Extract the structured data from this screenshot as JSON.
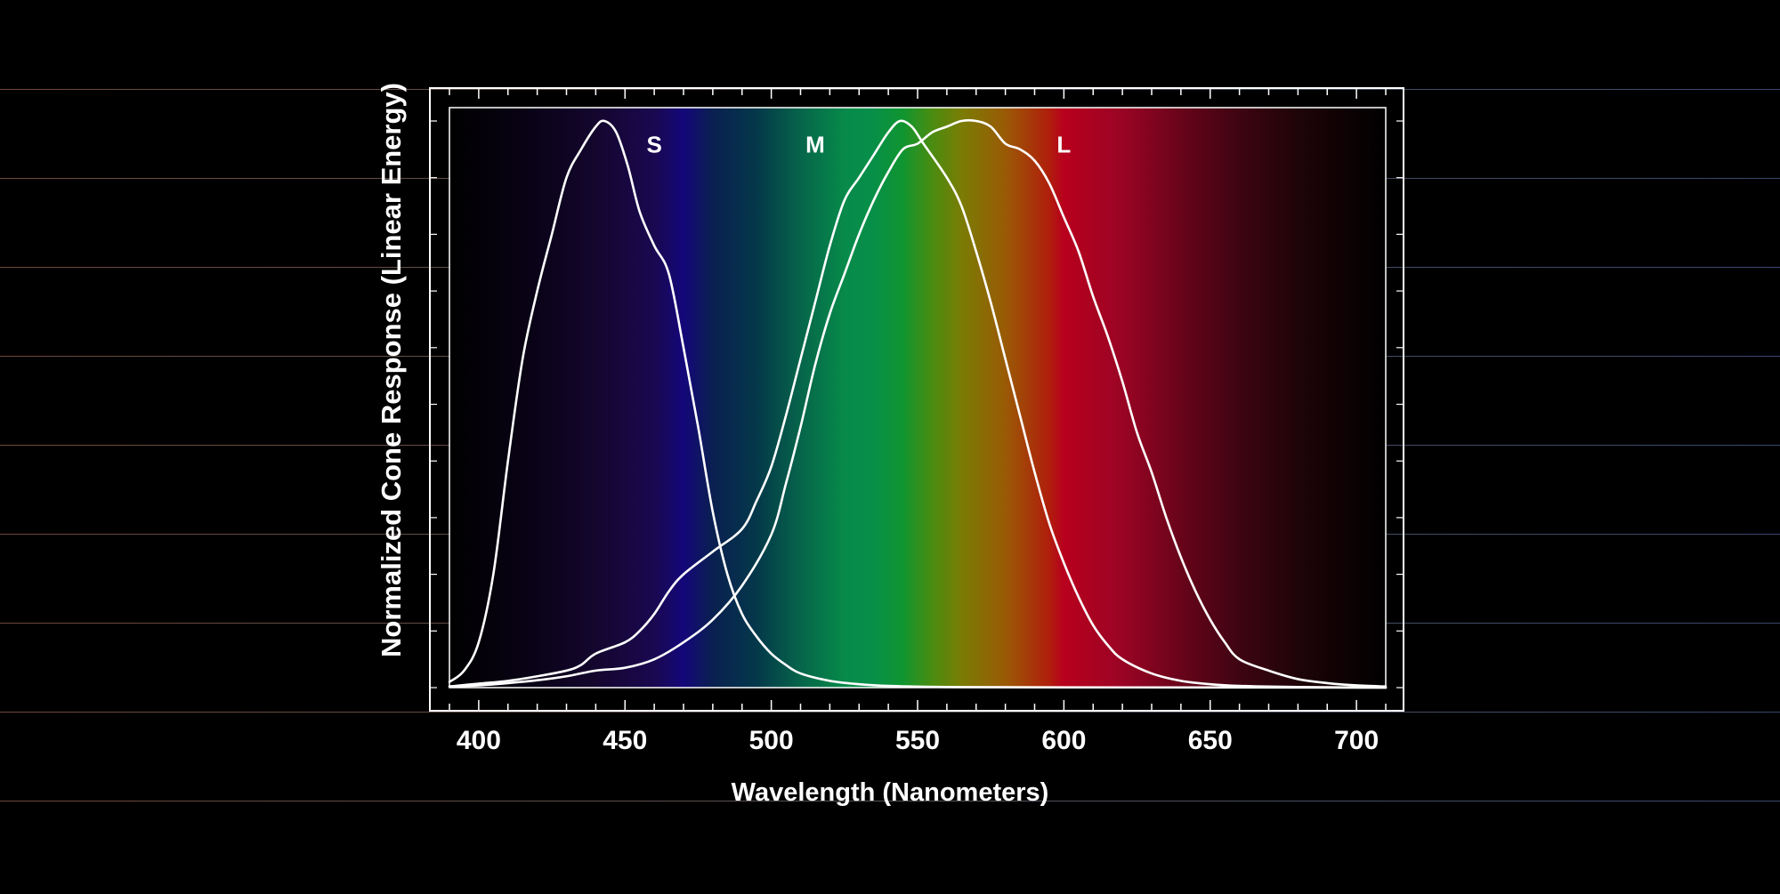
{
  "chart_data": {
    "type": "line",
    "title": "",
    "xlabel": "Wavelength (Nanometers)",
    "ylabel": "Normalized Cone Response (Linear Energy)",
    "xlim": [
      390,
      710
    ],
    "ylim": [
      0,
      1
    ],
    "x_ticks": [
      400,
      450,
      500,
      550,
      600,
      650,
      700
    ],
    "grid": true,
    "legend": "none",
    "series": [
      {
        "name": "S",
        "label_at": [
          460,
          0.96
        ],
        "points": [
          [
            390,
            0.01
          ],
          [
            395,
            0.03
          ],
          [
            400,
            0.08
          ],
          [
            405,
            0.2
          ],
          [
            410,
            0.4
          ],
          [
            415,
            0.58
          ],
          [
            420,
            0.7
          ],
          [
            425,
            0.8
          ],
          [
            430,
            0.9
          ],
          [
            435,
            0.95
          ],
          [
            440,
            0.99
          ],
          [
            443,
            1.0
          ],
          [
            447,
            0.98
          ],
          [
            451,
            0.92
          ],
          [
            455,
            0.84
          ],
          [
            460,
            0.78
          ],
          [
            465,
            0.73
          ],
          [
            470,
            0.6
          ],
          [
            475,
            0.46
          ],
          [
            480,
            0.31
          ],
          [
            485,
            0.2
          ],
          [
            490,
            0.13
          ],
          [
            495,
            0.09
          ],
          [
            500,
            0.06
          ],
          [
            505,
            0.04
          ],
          [
            510,
            0.025
          ],
          [
            520,
            0.012
          ],
          [
            530,
            0.006
          ],
          [
            540,
            0.003
          ],
          [
            560,
            0.001
          ],
          [
            600,
            0.0005
          ],
          [
            710,
            0
          ]
        ]
      },
      {
        "name": "M",
        "label_at": [
          515,
          0.96
        ],
        "points": [
          [
            390,
            0.002
          ],
          [
            400,
            0.007
          ],
          [
            410,
            0.012
          ],
          [
            420,
            0.02
          ],
          [
            430,
            0.03
          ],
          [
            435,
            0.04
          ],
          [
            440,
            0.06
          ],
          [
            450,
            0.08
          ],
          [
            455,
            0.1
          ],
          [
            460,
            0.13
          ],
          [
            465,
            0.17
          ],
          [
            470,
            0.2
          ],
          [
            480,
            0.24
          ],
          [
            490,
            0.28
          ],
          [
            495,
            0.33
          ],
          [
            500,
            0.39
          ],
          [
            505,
            0.48
          ],
          [
            510,
            0.58
          ],
          [
            515,
            0.68
          ],
          [
            520,
            0.78
          ],
          [
            525,
            0.86
          ],
          [
            530,
            0.9
          ],
          [
            535,
            0.94
          ],
          [
            540,
            0.98
          ],
          [
            544,
            1.0
          ],
          [
            548,
            0.99
          ],
          [
            552,
            0.96
          ],
          [
            560,
            0.9
          ],
          [
            565,
            0.85
          ],
          [
            570,
            0.77
          ],
          [
            575,
            0.68
          ],
          [
            580,
            0.58
          ],
          [
            585,
            0.48
          ],
          [
            590,
            0.38
          ],
          [
            595,
            0.29
          ],
          [
            600,
            0.22
          ],
          [
            605,
            0.16
          ],
          [
            610,
            0.11
          ],
          [
            615,
            0.075
          ],
          [
            620,
            0.05
          ],
          [
            630,
            0.025
          ],
          [
            640,
            0.012
          ],
          [
            650,
            0.006
          ],
          [
            660,
            0.003
          ],
          [
            680,
            0.001
          ],
          [
            710,
            0
          ]
        ]
      },
      {
        "name": "L",
        "label_at": [
          600,
          0.96
        ],
        "points": [
          [
            390,
            0.002
          ],
          [
            400,
            0.004
          ],
          [
            410,
            0.008
          ],
          [
            420,
            0.013
          ],
          [
            430,
            0.02
          ],
          [
            440,
            0.03
          ],
          [
            450,
            0.035
          ],
          [
            460,
            0.05
          ],
          [
            470,
            0.08
          ],
          [
            480,
            0.12
          ],
          [
            490,
            0.18
          ],
          [
            500,
            0.27
          ],
          [
            505,
            0.36
          ],
          [
            510,
            0.46
          ],
          [
            515,
            0.57
          ],
          [
            520,
            0.66
          ],
          [
            525,
            0.73
          ],
          [
            530,
            0.8
          ],
          [
            535,
            0.86
          ],
          [
            540,
            0.91
          ],
          [
            545,
            0.95
          ],
          [
            550,
            0.96
          ],
          [
            555,
            0.98
          ],
          [
            560,
            0.99
          ],
          [
            565,
            1.0
          ],
          [
            570,
            1.0
          ],
          [
            575,
            0.99
          ],
          [
            580,
            0.96
          ],
          [
            585,
            0.95
          ],
          [
            590,
            0.93
          ],
          [
            595,
            0.89
          ],
          [
            600,
            0.83
          ],
          [
            605,
            0.77
          ],
          [
            610,
            0.69
          ],
          [
            615,
            0.62
          ],
          [
            620,
            0.54
          ],
          [
            625,
            0.45
          ],
          [
            630,
            0.38
          ],
          [
            635,
            0.3
          ],
          [
            640,
            0.23
          ],
          [
            645,
            0.17
          ],
          [
            650,
            0.12
          ],
          [
            655,
            0.08
          ],
          [
            660,
            0.05
          ],
          [
            670,
            0.03
          ],
          [
            680,
            0.015
          ],
          [
            690,
            0.008
          ],
          [
            700,
            0.004
          ],
          [
            710,
            0.002
          ]
        ]
      }
    ],
    "spectrum_stops": [
      {
        "wl": 390,
        "color": "#000000"
      },
      {
        "wl": 420,
        "color": "#0a0318"
      },
      {
        "wl": 440,
        "color": "#14062e"
      },
      {
        "wl": 460,
        "color": "#1a0850"
      },
      {
        "wl": 470,
        "color": "#14077a"
      },
      {
        "wl": 480,
        "color": "#0a2050"
      },
      {
        "wl": 495,
        "color": "#04384a"
      },
      {
        "wl": 510,
        "color": "#06654a"
      },
      {
        "wl": 525,
        "color": "#078a4a"
      },
      {
        "wl": 535,
        "color": "#078f48"
      },
      {
        "wl": 545,
        "color": "#109530"
      },
      {
        "wl": 555,
        "color": "#4a8c10"
      },
      {
        "wl": 565,
        "color": "#7a7c05"
      },
      {
        "wl": 580,
        "color": "#9a5a05"
      },
      {
        "wl": 595,
        "color": "#b01e0c"
      },
      {
        "wl": 600,
        "color": "#b8001e"
      },
      {
        "wl": 620,
        "color": "#9a0424"
      },
      {
        "wl": 640,
        "color": "#68041a"
      },
      {
        "wl": 660,
        "color": "#3e0412"
      },
      {
        "wl": 680,
        "color": "#1e0408"
      },
      {
        "wl": 710,
        "color": "#000000"
      }
    ],
    "colors": {
      "background": "#000000",
      "curve": "#ffffff",
      "frame": "#ffffff",
      "grid_left": "#c9826a",
      "grid_right": "#6a82c9"
    }
  }
}
